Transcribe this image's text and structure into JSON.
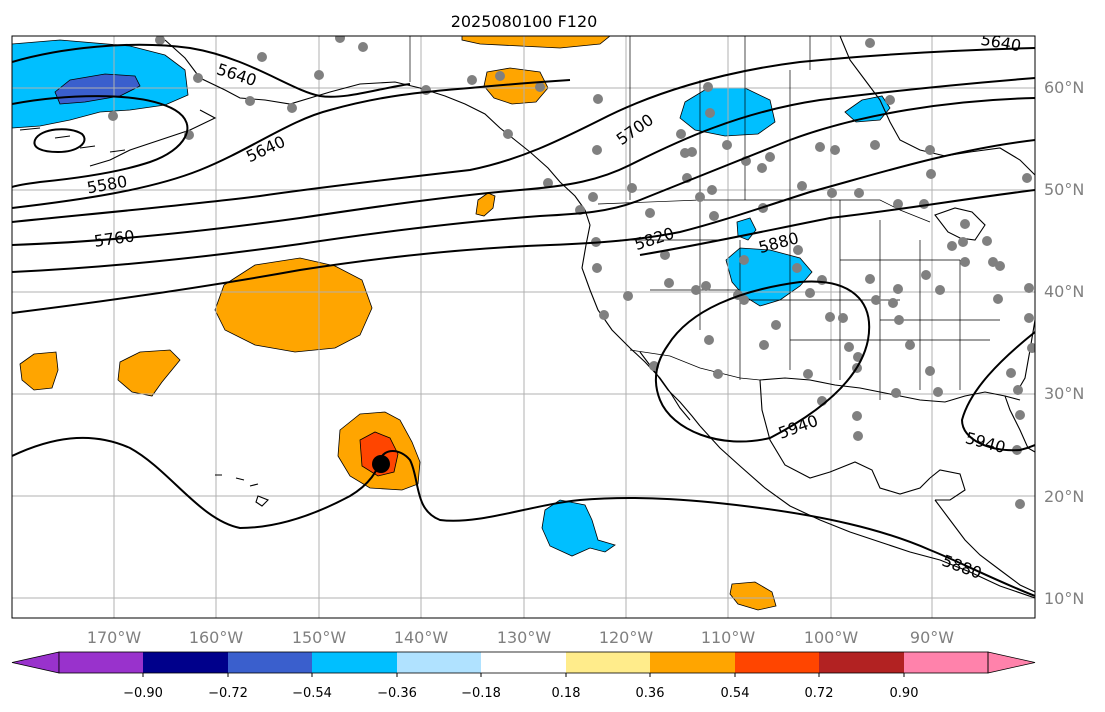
{
  "title": "2025080100 F120",
  "lon_labels": [
    "170°W",
    "160°W",
    "150°W",
    "140°W",
    "130°W",
    "120°W",
    "110°W",
    "100°W",
    "90°W"
  ],
  "lat_labels": [
    "60°N",
    "50°N",
    "40°N",
    "30°N",
    "20°N",
    "10°N"
  ],
  "contour_labels": [
    "5640",
    "5640",
    "5640",
    "5580",
    "5760",
    "5700",
    "5820",
    "5880",
    "5940",
    "5940",
    "5880"
  ],
  "colorbar": {
    "colors": [
      "#9932cc",
      "#00008b",
      "#3a5fcd",
      "#00bfff",
      "#b0e2ff",
      "#ffffff",
      "#ffec8b",
      "#ffa500",
      "#ff4500",
      "#b22222",
      "#ff82ab"
    ],
    "tick_labels": [
      "−0.90",
      "−0.72",
      "−0.54",
      "−0.36",
      "−0.18",
      "0.18",
      "0.36",
      "0.54",
      "0.72",
      "0.90"
    ]
  },
  "shading_colors": {
    "orange": "#ffa500",
    "red_orange": "#ff4500",
    "deep_sky_blue": "#00bfff",
    "royal_blue": "#3a5fcd"
  },
  "storm_marker": "tropical-cyclone-center",
  "station_color": "#808080"
}
